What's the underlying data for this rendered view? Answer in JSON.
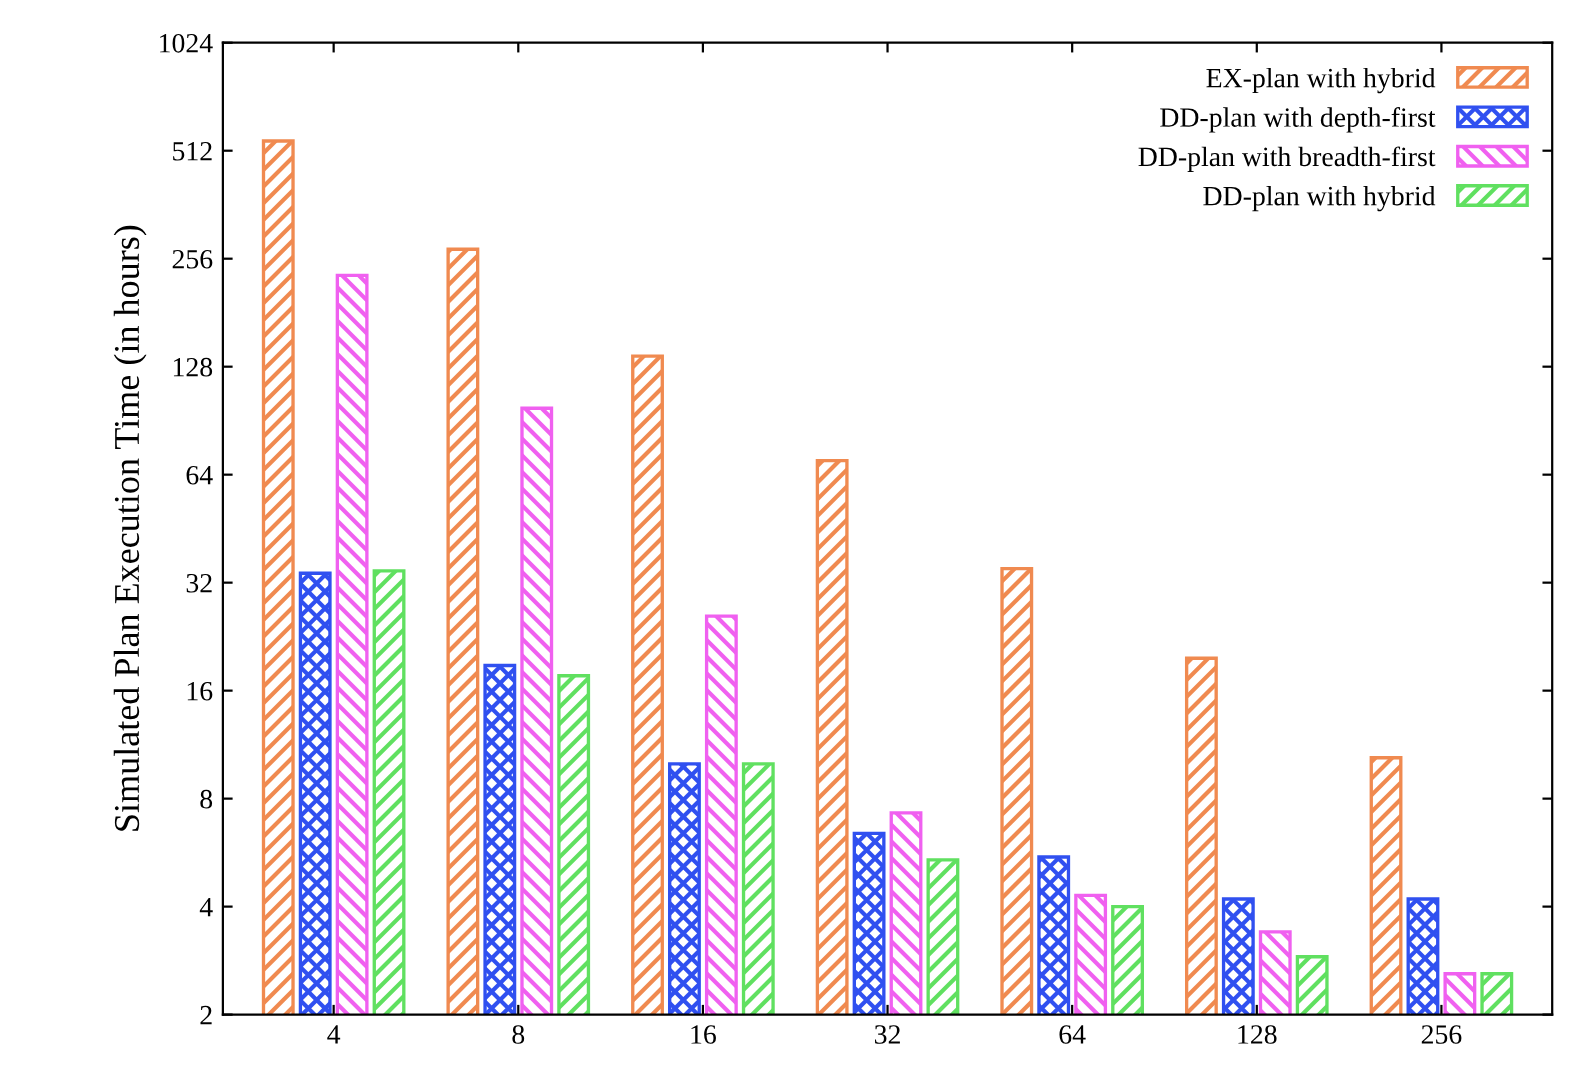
{
  "chart_data": {
    "type": "bar",
    "ylabel": "Simulated Plan Execution Time (in hours)",
    "categories": [
      "4",
      "8",
      "16",
      "32",
      "64",
      "128",
      "256"
    ],
    "series": [
      {
        "name": "EX-plan with hybrid",
        "color": "#f08a50",
        "values": [
          545,
          272,
          137,
          70,
          35,
          19.7,
          10.4
        ]
      },
      {
        "name": "DD-plan with depth-first",
        "color": "#3050f0",
        "values": [
          34,
          18.8,
          10,
          6.4,
          5.5,
          4.2,
          4.2
        ]
      },
      {
        "name": "DD-plan with breadth-first",
        "color": "#f060f0",
        "values": [
          230,
          98,
          25.8,
          7.3,
          4.3,
          3.4,
          2.6
        ]
      },
      {
        "name": "DD-plan with hybrid",
        "color": "#60e060",
        "values": [
          34.5,
          17.6,
          10,
          5.4,
          4,
          2.9,
          2.6
        ]
      }
    ],
    "log": true,
    "ylim": [
      2,
      1024
    ],
    "yticks": [
      2,
      4,
      8,
      16,
      32,
      64,
      128,
      256,
      512,
      1024
    ],
    "grid": false,
    "legend": "top right"
  }
}
